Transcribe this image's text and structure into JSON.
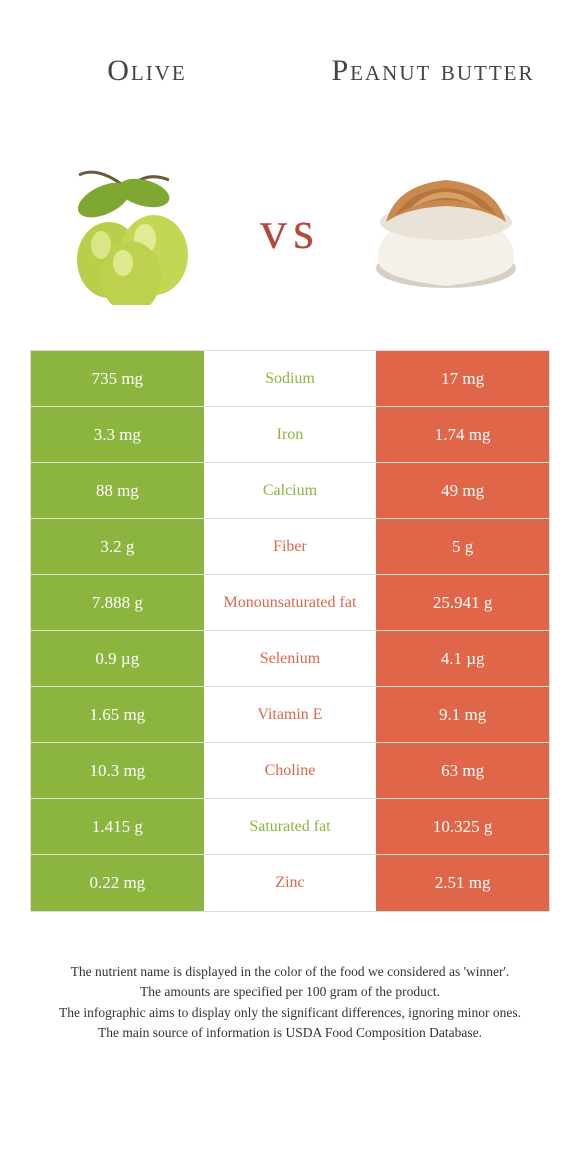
{
  "colors": {
    "olive": "#8bb53f",
    "pb": "#e0664a",
    "vs": "#b14a3a",
    "text": "#333333"
  },
  "header": {
    "left": "Olive",
    "right": "Peanut butter",
    "vs": "vs"
  },
  "rows": [
    {
      "left": "735 mg",
      "label": "Sodium",
      "right": "17 mg",
      "winner": "olive"
    },
    {
      "left": "3.3 mg",
      "label": "Iron",
      "right": "1.74 mg",
      "winner": "olive"
    },
    {
      "left": "88 mg",
      "label": "Calcium",
      "right": "49 mg",
      "winner": "olive"
    },
    {
      "left": "3.2 g",
      "label": "Fiber",
      "right": "5 g",
      "winner": "pb"
    },
    {
      "left": "7.888 g",
      "label": "Monounsaturated fat",
      "right": "25.941 g",
      "winner": "pb"
    },
    {
      "left": "0.9 µg",
      "label": "Selenium",
      "right": "4.1 µg",
      "winner": "pb"
    },
    {
      "left": "1.65 mg",
      "label": "Vitamin E",
      "right": "9.1 mg",
      "winner": "pb"
    },
    {
      "left": "10.3 mg",
      "label": "Choline",
      "right": "63 mg",
      "winner": "pb"
    },
    {
      "left": "1.415 g",
      "label": "Saturated fat",
      "right": "10.325 g",
      "winner": "olive"
    },
    {
      "left": "0.22 mg",
      "label": "Zinc",
      "right": "2.51 mg",
      "winner": "pb"
    }
  ],
  "footer": {
    "line1": "The nutrient name is displayed in the color of the food we considered as 'winner'.",
    "line2": "The amounts are specified per 100 gram of the product.",
    "line3": "The infographic aims to display only the significant differences, ignoring minor ones.",
    "line4": "The main source of information is USDA Food Composition Database."
  }
}
